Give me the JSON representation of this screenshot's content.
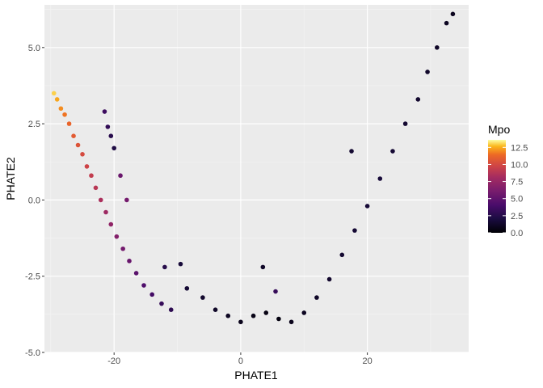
{
  "chart_data": {
    "type": "scatter",
    "xlabel": "PHATE1",
    "ylabel": "PHATE2",
    "xlim": [
      -31,
      36
    ],
    "ylim": [
      -5,
      6.4
    ],
    "x_ticks": [
      -20,
      0,
      20
    ],
    "x_tick_labels": [
      "-20",
      "0",
      "20"
    ],
    "y_ticks": [
      -5,
      -2.5,
      0,
      2.5,
      5
    ],
    "y_tick_labels": [
      "-5.0",
      "-2.5",
      "0.0",
      "2.5",
      "5.0"
    ],
    "grid": true,
    "background": "#ebebeb",
    "gridline_color": "#ffffff",
    "color_variable": "Mpo",
    "color_scale": "inferno",
    "color_range": [
      0,
      13.6
    ],
    "legend": {
      "title": "Mpo",
      "placement": "right",
      "ticks": [
        0,
        2.5,
        5,
        7.5,
        10,
        12.5
      ],
      "tick_labels": [
        "0.0",
        "2.5",
        "5.0",
        "7.5",
        "10.0",
        "12.5"
      ]
    },
    "points": [
      [
        -29.5,
        3.5,
        13.0
      ],
      [
        -29.0,
        3.3,
        12.4
      ],
      [
        -28.4,
        3.0,
        12.0
      ],
      [
        -27.8,
        2.8,
        11.6
      ],
      [
        -27.1,
        2.5,
        11.2
      ],
      [
        -26.4,
        2.1,
        10.8
      ],
      [
        -25.7,
        1.8,
        10.5
      ],
      [
        -25.0,
        1.5,
        10.1
      ],
      [
        -24.3,
        1.1,
        9.7
      ],
      [
        -23.6,
        0.8,
        9.3
      ],
      [
        -22.9,
        0.4,
        8.9
      ],
      [
        -22.1,
        0.0,
        8.4
      ],
      [
        -21.3,
        -0.4,
        7.8
      ],
      [
        -20.5,
        -0.8,
        7.2
      ],
      [
        -19.6,
        -1.2,
        6.6
      ],
      [
        -18.6,
        -1.6,
        5.9
      ],
      [
        -17.6,
        -2.0,
        5.4
      ],
      [
        -16.5,
        -2.4,
        4.8
      ],
      [
        -15.3,
        -2.8,
        4.3
      ],
      [
        -14.0,
        -3.1,
        3.8
      ],
      [
        -12.5,
        -3.4,
        3.2
      ],
      [
        -11.0,
        -3.6,
        2.8
      ],
      [
        -21.5,
        2.9,
        3.5
      ],
      [
        -21.0,
        2.4,
        3.0
      ],
      [
        -20.5,
        2.1,
        2.6
      ],
      [
        -20.0,
        1.7,
        2.2
      ],
      [
        -19.0,
        0.8,
        5.5
      ],
      [
        -18.0,
        0.0,
        6.0
      ],
      [
        -12.0,
        -2.2,
        2.5
      ],
      [
        -9.5,
        -2.1,
        1.8
      ],
      [
        -8.5,
        -2.9,
        1.6
      ],
      [
        -6.0,
        -3.2,
        1.4
      ],
      [
        -4.0,
        -3.6,
        1.2
      ],
      [
        -2.0,
        -3.8,
        1.0
      ],
      [
        0.0,
        -4.0,
        0.8
      ],
      [
        2.0,
        -3.8,
        0.6
      ],
      [
        4.0,
        -3.7,
        0.5
      ],
      [
        5.5,
        -3.0,
        3.2
      ],
      [
        6.0,
        -3.9,
        0.4
      ],
      [
        8.0,
        -4.0,
        0.8
      ],
      [
        10.0,
        -3.7,
        1.0
      ],
      [
        12.0,
        -3.2,
        1.2
      ],
      [
        14.0,
        -2.6,
        1.4
      ],
      [
        16.0,
        -1.8,
        1.5
      ],
      [
        18.0,
        -1.0,
        1.6
      ],
      [
        20.0,
        -0.2,
        1.7
      ],
      [
        22.0,
        0.7,
        1.8
      ],
      [
        24.0,
        1.6,
        1.6
      ],
      [
        26.0,
        2.5,
        1.5
      ],
      [
        28.0,
        3.3,
        1.4
      ],
      [
        29.5,
        4.2,
        1.3
      ],
      [
        31.0,
        5.0,
        1.2
      ],
      [
        32.5,
        5.8,
        1.0
      ],
      [
        33.5,
        6.1,
        0.9
      ],
      [
        17.5,
        1.6,
        1.5
      ],
      [
        3.5,
        -2.2,
        1.2
      ]
    ]
  }
}
